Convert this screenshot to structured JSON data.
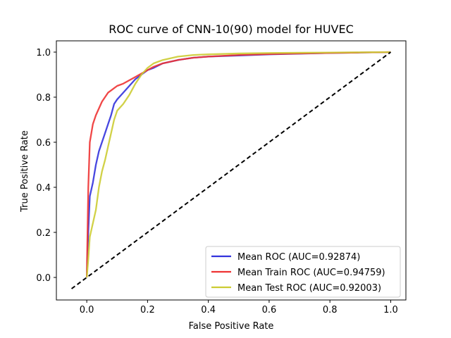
{
  "chart_data": {
    "type": "line",
    "title": "ROC curve of CNN-10(90) model for HUVEC",
    "xlabel": "False Positive Rate",
    "ylabel": "True Positive Rate",
    "xlim": [
      -0.1,
      1.05
    ],
    "ylim": [
      -0.1,
      1.05
    ],
    "xticks": [
      0.0,
      0.2,
      0.4,
      0.6,
      0.8,
      1.0
    ],
    "yticks": [
      0.0,
      0.2,
      0.4,
      0.6,
      0.8,
      1.0
    ],
    "xtick_labels": [
      "0.0",
      "0.2",
      "0.4",
      "0.6",
      "0.8",
      "1.0"
    ],
    "ytick_labels": [
      "0.0",
      "0.2",
      "0.4",
      "0.6",
      "0.8",
      "1.0"
    ],
    "grid": false,
    "legend_position": "lower-right",
    "series": [
      {
        "name": "Mean ROC (AUC=0.92874)",
        "color": "#3333dd",
        "x": [
          0.0,
          0.005,
          0.01,
          0.02,
          0.03,
          0.04,
          0.05,
          0.06,
          0.07,
          0.08,
          0.09,
          0.1,
          0.12,
          0.14,
          0.16,
          0.18,
          0.2,
          0.22,
          0.25,
          0.3,
          0.35,
          0.4,
          0.5,
          0.6,
          0.7,
          0.8,
          0.9,
          1.0
        ],
        "y": [
          0.0,
          0.2,
          0.36,
          0.42,
          0.5,
          0.56,
          0.6,
          0.64,
          0.68,
          0.72,
          0.77,
          0.79,
          0.82,
          0.85,
          0.88,
          0.9,
          0.92,
          0.93,
          0.95,
          0.965,
          0.975,
          0.98,
          0.985,
          0.99,
          0.993,
          0.996,
          0.998,
          1.0
        ]
      },
      {
        "name": "Mean Train ROC (AUC=0.94759)",
        "color": "#ee3333",
        "x": [
          0.0,
          0.005,
          0.01,
          0.02,
          0.03,
          0.04,
          0.05,
          0.06,
          0.07,
          0.08,
          0.09,
          0.1,
          0.12,
          0.14,
          0.16,
          0.18,
          0.2,
          0.22,
          0.25,
          0.3,
          0.35,
          0.4,
          0.5,
          0.6,
          0.7,
          0.8,
          0.9,
          1.0
        ],
        "y": [
          0.0,
          0.4,
          0.6,
          0.68,
          0.72,
          0.75,
          0.78,
          0.8,
          0.82,
          0.83,
          0.84,
          0.85,
          0.86,
          0.875,
          0.89,
          0.905,
          0.92,
          0.935,
          0.95,
          0.965,
          0.975,
          0.98,
          0.987,
          0.991,
          0.994,
          0.996,
          0.998,
          1.0
        ]
      },
      {
        "name": "Mean Test ROC (AUC=0.92003)",
        "color": "#cccc33",
        "x": [
          0.0,
          0.005,
          0.01,
          0.02,
          0.03,
          0.04,
          0.05,
          0.06,
          0.07,
          0.08,
          0.09,
          0.1,
          0.12,
          0.14,
          0.16,
          0.18,
          0.2,
          0.22,
          0.25,
          0.3,
          0.35,
          0.4,
          0.5,
          0.6,
          0.7,
          0.8,
          0.9,
          1.0
        ],
        "y": [
          0.0,
          0.08,
          0.18,
          0.24,
          0.3,
          0.4,
          0.47,
          0.52,
          0.58,
          0.64,
          0.7,
          0.74,
          0.77,
          0.81,
          0.86,
          0.9,
          0.93,
          0.95,
          0.965,
          0.98,
          0.987,
          0.99,
          0.994,
          0.996,
          0.997,
          0.998,
          0.999,
          1.0
        ]
      },
      {
        "name": "",
        "color": "#000000",
        "dashed": true,
        "x": [
          -0.05,
          1.0
        ],
        "y": [
          -0.05,
          1.0
        ]
      }
    ]
  }
}
